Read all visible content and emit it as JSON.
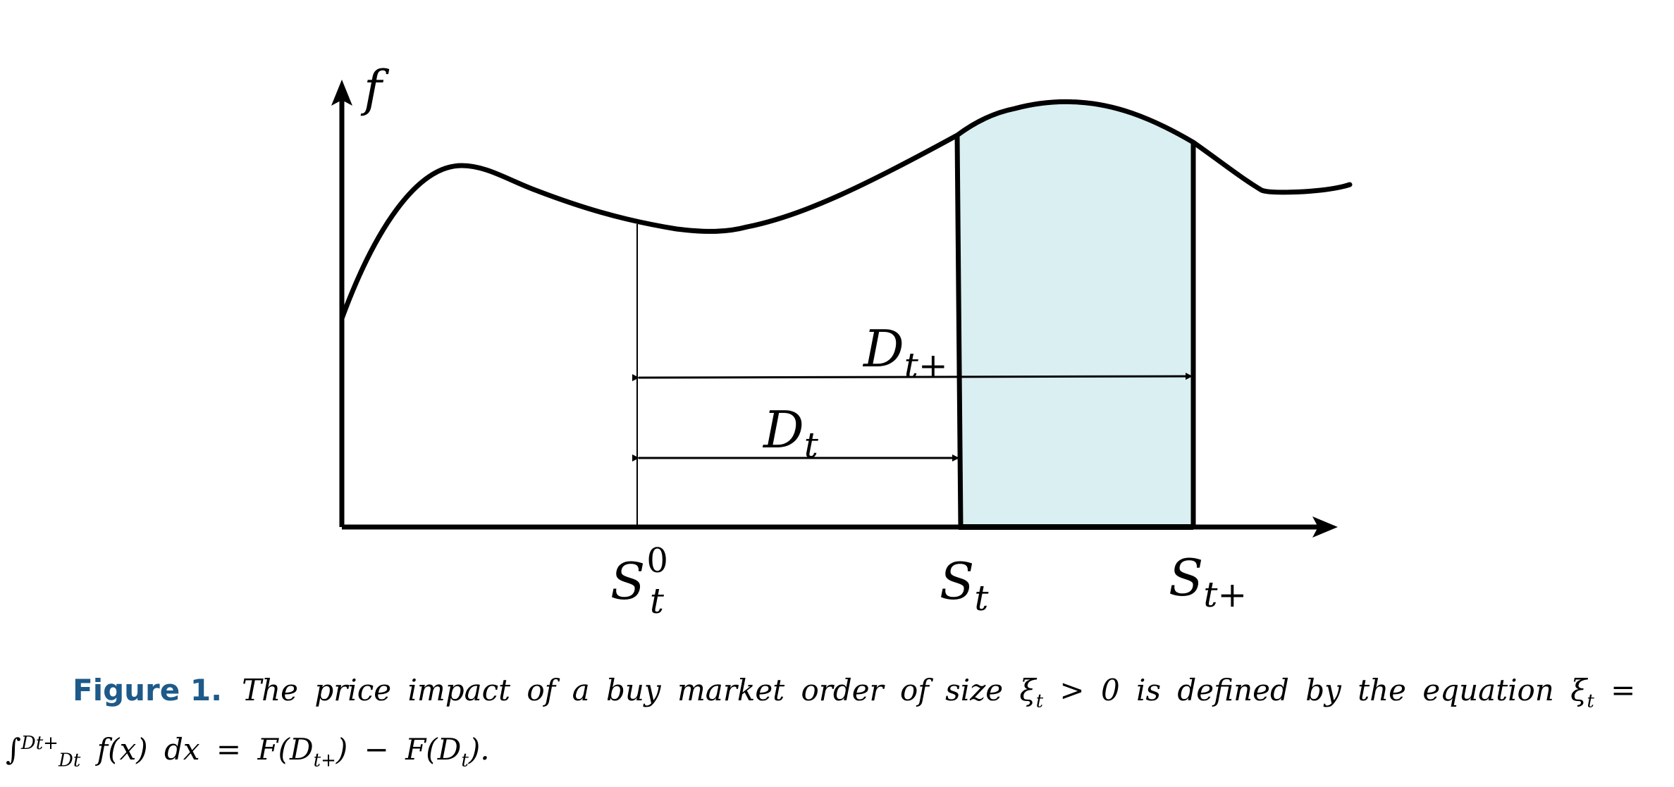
{
  "figure": {
    "axis_label_y": "f",
    "interval_labels": {
      "d_t_plus": {
        "base": "D",
        "sub": "t+"
      },
      "d_t": {
        "base": "D",
        "sub": "t"
      }
    },
    "tick_labels": {
      "s_t0": {
        "base": "S",
        "sub": "t",
        "sup": "0"
      },
      "s_t": {
        "base": "S",
        "sub": "t"
      },
      "s_t_plus": {
        "base": "S",
        "sub": "t+"
      }
    },
    "colors": {
      "shaded_region": "#d9eff2",
      "stroke": "#000000",
      "caption_label": "#1d5a8a"
    }
  },
  "caption": {
    "label": "Figure 1.",
    "text_prefix": "The price impact of a buy market order of size ξ",
    "text_mid": " > 0 is defined by the equation ξ",
    "text_eq": " = ∫",
    "integral_sup": "Dt+",
    "integral_sub": "Dt",
    "text_tail": " f(x) dx = F(D",
    "text_tail_sub": "t+",
    "text_tail2": ") − F(D",
    "text_tail2_sub": "t",
    "text_end": ").",
    "xi_sub": "t"
  }
}
